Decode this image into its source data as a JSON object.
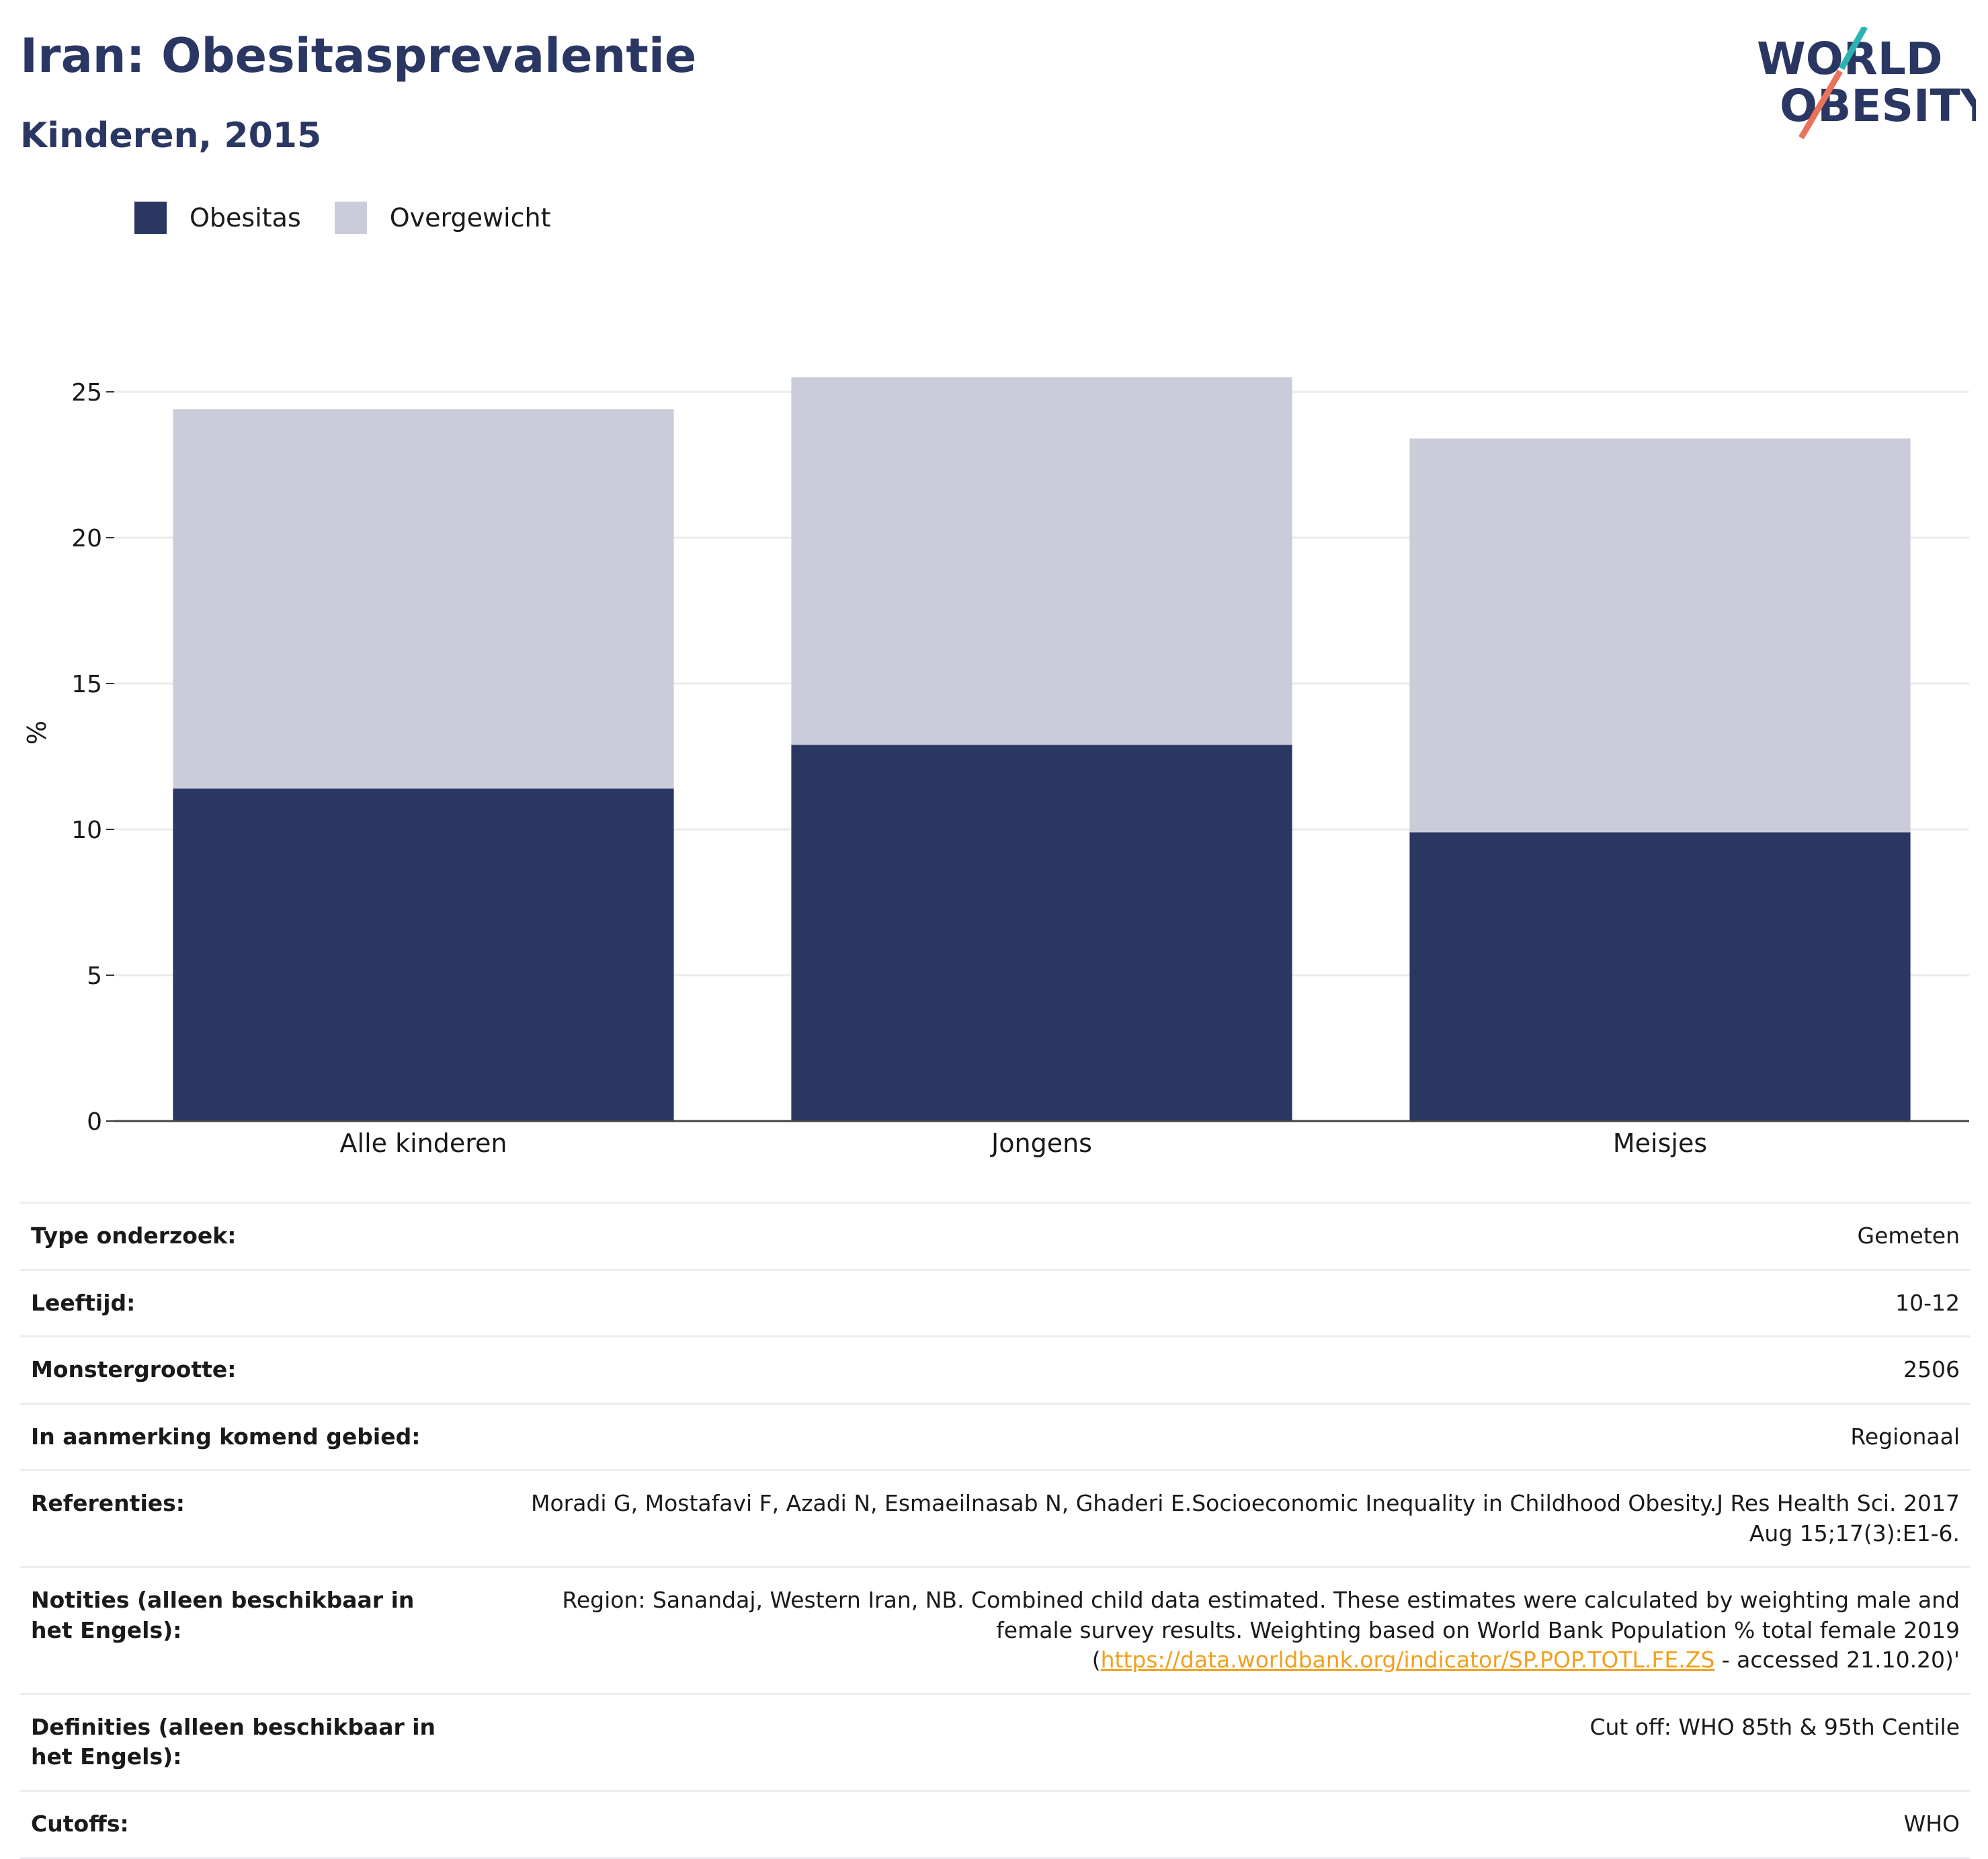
{
  "header": {
    "title": "Iran: Obesitasprevalentie",
    "subtitle": "Kinderen, 2015"
  },
  "logo": {
    "line1": "WORLD",
    "line2": "OBESITY",
    "accent1": "#2bb3b1",
    "accent2": "#e8735a"
  },
  "colors": {
    "obesitas": "#2b3763",
    "overgewicht": "#cacdd9",
    "text": "#1a1a1a"
  },
  "chart_data": {
    "type": "bar",
    "stacked": true,
    "categories": [
      "Alle kinderen",
      "Jongens",
      "Meisjes"
    ],
    "series": [
      {
        "name": "Obesitas",
        "values": [
          11.4,
          12.9,
          9.9
        ]
      },
      {
        "name": "Overgewicht",
        "values": [
          13.0,
          12.6,
          13.5
        ]
      }
    ],
    "title": "",
    "xlabel": "",
    "ylabel": "%",
    "ylim": [
      0,
      25.5
    ],
    "yticks": [
      0,
      5,
      10,
      15,
      20,
      25
    ],
    "grid": true,
    "legend": "top-left"
  },
  "info": [
    {
      "label": "Type onderzoek:",
      "value": "Gemeten"
    },
    {
      "label": "Leeftijd:",
      "value": "10-12"
    },
    {
      "label": "Monstergrootte:",
      "value": "2506"
    },
    {
      "label": "In aanmerking komend gebied:",
      "value": "Regionaal"
    },
    {
      "label": "Referenties:",
      "value": "Moradi G, Mostafavi F, Azadi N, Esmaeilnasab N, Ghaderi E.Socioeconomic Inequality in Childhood Obesity.J Res Health Sci. 2017 Aug 15;17(3):E1-6."
    },
    {
      "label": "Notities (alleen beschikbaar in het Engels):",
      "value_pre": "Region: Sanandaj, Western Iran, NB. Combined child data estimated. These estimates were calculated by weighting male and female survey results. Weighting based on World Bank Population % total female 2019 (",
      "value_link": "https://data.worldbank.org/indicator/SP.POP.TOTL.FE.ZS",
      "value_post": " - accessed 21.10.20)'"
    },
    {
      "label": "Definities (alleen beschikbaar in het Engels):",
      "value": "Cut off: WHO 85th & 95th Centile"
    },
    {
      "label": "Cutoffs:",
      "value": "WHO"
    }
  ]
}
